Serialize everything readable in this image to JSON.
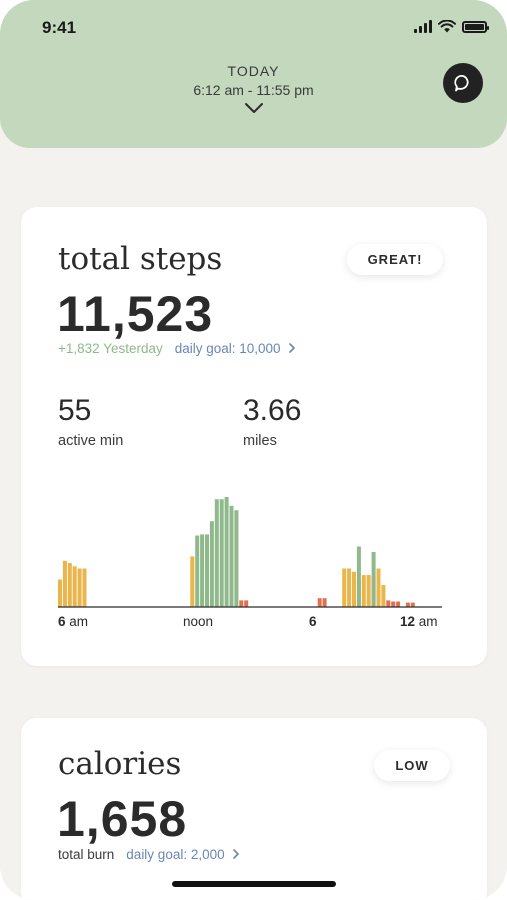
{
  "status_bar": {
    "time": "9:41"
  },
  "header": {
    "label": "TODAY",
    "time_range": "6:12 am - 11:55 pm"
  },
  "steps_card": {
    "title": "total steps",
    "badge": "GREAT!",
    "value": "11,523",
    "vs_yesterday": "+1,832 Yesterday",
    "goal_link": "daily goal: 10,000",
    "active_min_value": "55",
    "active_min_label": "active min",
    "miles_value": "3.66",
    "miles_label": "miles",
    "ticks": [
      {
        "bold": "6",
        "rest": " am"
      },
      {
        "bold": "",
        "rest": "noon"
      },
      {
        "bold": "6",
        "rest": ""
      },
      {
        "bold": "12",
        "rest": " am"
      }
    ]
  },
  "calories_card": {
    "title": "calories",
    "badge": "LOW",
    "value": "1,658",
    "label": "total burn",
    "goal_link": "daily goal: 2,000"
  },
  "colors": {
    "header_bg": "#c3d8bd",
    "green_bar": "#8fb98a",
    "yellow_bar": "#eab54a",
    "red_bar": "#e0704e",
    "link_blue": "#6a86b6"
  },
  "chart_data": {
    "type": "bar",
    "series": [
      {
        "color": "#eab54a",
        "values": [
          0.25,
          0.42,
          0.4,
          0.37,
          0.35,
          0.35,
          0,
          0,
          0,
          0,
          0,
          0,
          0,
          0,
          0,
          0,
          0,
          0,
          0,
          0,
          0,
          0,
          0,
          0,
          0,
          0,
          0,
          0.46,
          0,
          0,
          0,
          0,
          0,
          0,
          0,
          0,
          0,
          0,
          0,
          0,
          0,
          0,
          0,
          0,
          0,
          0,
          0,
          0,
          0,
          0,
          0,
          0,
          0,
          0,
          0,
          0,
          0,
          0,
          0.35,
          0.35,
          0.32,
          0.25,
          0.29,
          0.29,
          0.28,
          0.35,
          0.2,
          0,
          0,
          0,
          0,
          0,
          0
        ]
      },
      {
        "color": "#8fb98a",
        "values": [
          0,
          0,
          0,
          0,
          0,
          0,
          0,
          0,
          0,
          0,
          0,
          0,
          0,
          0,
          0,
          0,
          0,
          0,
          0,
          0,
          0,
          0,
          0,
          0,
          0,
          0,
          0,
          0,
          0.65,
          0.66,
          0.66,
          0.78,
          0.98,
          0.98,
          1.0,
          0.92,
          0.88,
          0,
          0,
          0,
          0,
          0,
          0,
          0,
          0,
          0,
          0,
          0,
          0,
          0,
          0,
          0,
          0,
          0,
          0,
          0,
          0,
          0,
          0,
          0,
          0,
          0.55,
          0,
          0,
          0.5,
          0,
          0,
          0,
          0,
          0,
          0,
          0,
          0
        ]
      },
      {
        "color": "#e0704e",
        "values": [
          0,
          0,
          0,
          0,
          0,
          0,
          0,
          0,
          0,
          0,
          0,
          0,
          0,
          0,
          0,
          0,
          0,
          0,
          0,
          0,
          0,
          0,
          0,
          0,
          0,
          0,
          0,
          0,
          0,
          0,
          0,
          0,
          0,
          0,
          0,
          0,
          0,
          0.06,
          0.06,
          0,
          0,
          0,
          0,
          0,
          0,
          0,
          0,
          0,
          0,
          0,
          0,
          0,
          0,
          0.08,
          0.08,
          0,
          0,
          0,
          0,
          0,
          0,
          0,
          0,
          0,
          0,
          0,
          0,
          0.06,
          0.05,
          0.05,
          0,
          0.04,
          0.04
        ]
      }
    ]
  }
}
